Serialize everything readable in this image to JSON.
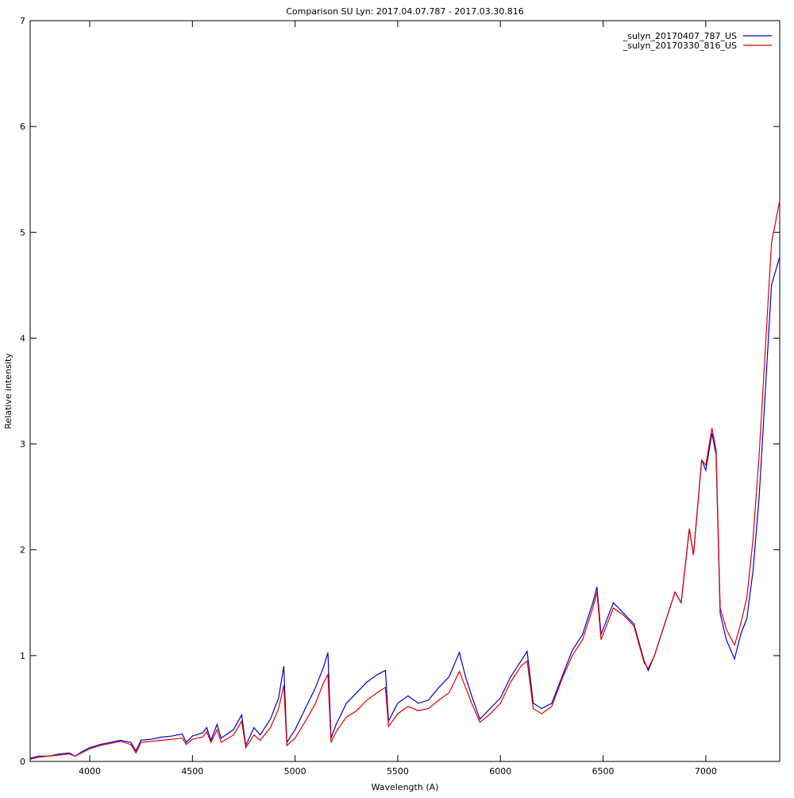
{
  "chart_data": {
    "type": "line",
    "title": "Comparison SU Lyn: 2017.04.07.787 - 2017.03.30.816",
    "x_label": "Wavelength (A)",
    "y_label": "Relative intensity",
    "xlim": [
      3710,
      7360
    ],
    "ylim": [
      0,
      7
    ],
    "xticks": [
      4000,
      4500,
      5000,
      5500,
      6000,
      6500,
      7000
    ],
    "yticks": [
      0,
      1,
      2,
      3,
      4,
      5,
      6,
      7
    ],
    "legend": "upper right",
    "x": [
      3710,
      3750,
      3800,
      3850,
      3900,
      3930,
      3960,
      4000,
      4050,
      4100,
      4150,
      4200,
      4225,
      4250,
      4300,
      4350,
      4400,
      4450,
      4470,
      4500,
      4550,
      4570,
      4590,
      4620,
      4640,
      4700,
      4740,
      4760,
      4800,
      4830,
      4880,
      4920,
      4945,
      4960,
      5000,
      5050,
      5100,
      5140,
      5160,
      5175,
      5200,
      5250,
      5300,
      5350,
      5400,
      5440,
      5455,
      5500,
      5550,
      5600,
      5650,
      5700,
      5750,
      5800,
      5830,
      5860,
      5900,
      5950,
      6000,
      6050,
      6100,
      6130,
      6160,
      6200,
      6250,
      6300,
      6350,
      6400,
      6450,
      6470,
      6490,
      6550,
      6600,
      6650,
      6700,
      6720,
      6750,
      6800,
      6850,
      6880,
      6920,
      6940,
      6980,
      7000,
      7030,
      7050,
      7070,
      7100,
      7140,
      7170,
      7200,
      7230,
      7260,
      7290,
      7320,
      7360
    ],
    "series": [
      {
        "name": "_sulyn_20170407_787_US",
        "color": "#0000cc",
        "values": [
          0.03,
          0.05,
          0.05,
          0.07,
          0.08,
          0.05,
          0.09,
          0.13,
          0.16,
          0.18,
          0.2,
          0.18,
          0.1,
          0.2,
          0.21,
          0.23,
          0.24,
          0.26,
          0.18,
          0.24,
          0.27,
          0.32,
          0.2,
          0.35,
          0.22,
          0.3,
          0.44,
          0.15,
          0.32,
          0.25,
          0.4,
          0.6,
          0.9,
          0.18,
          0.3,
          0.5,
          0.7,
          0.9,
          1.03,
          0.22,
          0.35,
          0.55,
          0.65,
          0.75,
          0.82,
          0.86,
          0.38,
          0.55,
          0.62,
          0.55,
          0.58,
          0.7,
          0.8,
          1.03,
          0.8,
          0.62,
          0.4,
          0.5,
          0.6,
          0.8,
          0.95,
          1.04,
          0.55,
          0.5,
          0.55,
          0.8,
          1.05,
          1.2,
          1.5,
          1.65,
          1.2,
          1.5,
          1.4,
          1.3,
          0.95,
          0.86,
          1.0,
          1.3,
          1.6,
          1.5,
          2.2,
          1.95,
          2.85,
          2.75,
          3.1,
          2.9,
          1.4,
          1.15,
          0.97,
          1.2,
          1.35,
          1.8,
          2.5,
          3.5,
          4.5,
          4.77
        ]
      },
      {
        "name": "_sulyn_20170330_816_US",
        "color": "#dd0000",
        "values": [
          0.02,
          0.04,
          0.05,
          0.06,
          0.07,
          0.05,
          0.08,
          0.12,
          0.15,
          0.17,
          0.19,
          0.16,
          0.08,
          0.18,
          0.19,
          0.2,
          0.21,
          0.22,
          0.16,
          0.21,
          0.23,
          0.28,
          0.18,
          0.3,
          0.18,
          0.25,
          0.38,
          0.13,
          0.25,
          0.2,
          0.32,
          0.5,
          0.72,
          0.15,
          0.22,
          0.38,
          0.55,
          0.75,
          0.82,
          0.18,
          0.28,
          0.42,
          0.48,
          0.58,
          0.65,
          0.7,
          0.33,
          0.45,
          0.52,
          0.48,
          0.5,
          0.58,
          0.65,
          0.85,
          0.7,
          0.55,
          0.37,
          0.45,
          0.55,
          0.75,
          0.9,
          0.95,
          0.5,
          0.45,
          0.52,
          0.78,
          1.0,
          1.15,
          1.45,
          1.6,
          1.15,
          1.45,
          1.38,
          1.28,
          0.93,
          0.88,
          1.0,
          1.3,
          1.6,
          1.5,
          2.2,
          1.95,
          2.85,
          2.8,
          3.15,
          2.95,
          1.45,
          1.25,
          1.1,
          1.3,
          1.55,
          2.1,
          2.9,
          3.9,
          4.9,
          5.3
        ]
      }
    ]
  }
}
